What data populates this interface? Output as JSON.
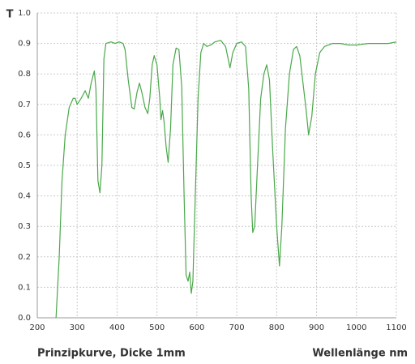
{
  "chart_data": {
    "type": "line",
    "ylabel": "T",
    "caption": "Prinzipkurve, Dicke 1mm",
    "xlabel": "Wellenlänge nm",
    "color": "#4aa84a",
    "grid": true,
    "xlim": [
      200,
      1100
    ],
    "xticks": [
      200,
      300,
      400,
      500,
      600,
      700,
      800,
      900,
      1000,
      1100
    ],
    "ylim": [
      0,
      1
    ],
    "yticks": [
      {
        "value": 0,
        "label": "0.0"
      },
      0.1,
      0.2,
      0.3,
      0.4,
      0.5,
      0.6,
      0.7,
      0.8,
      0.9,
      {
        "value": 1,
        "label": "1.0"
      }
    ],
    "x": [
      247,
      255,
      262,
      270,
      280,
      290,
      295,
      300,
      310,
      320,
      328,
      335,
      343,
      347,
      352,
      357,
      362,
      367,
      372,
      385,
      395,
      405,
      415,
      420,
      428,
      437,
      443,
      450,
      456,
      462,
      470,
      477,
      482,
      488,
      493,
      500,
      507,
      510,
      514,
      518,
      523,
      528,
      534,
      540,
      548,
      555,
      562,
      568,
      573,
      578,
      582,
      586,
      590,
      596,
      603,
      610,
      617,
      625,
      635,
      645,
      660,
      672,
      683,
      690,
      700,
      712,
      722,
      730,
      736,
      740,
      745,
      752,
      760,
      768,
      775,
      782,
      790,
      800,
      807,
      813,
      822,
      832,
      842,
      850,
      858,
      866,
      874,
      880,
      888,
      897,
      908,
      920,
      940,
      960,
      980,
      1000,
      1030,
      1060,
      1080,
      1100
    ],
    "values": [
      0,
      0.2,
      0.45,
      0.6,
      0.69,
      0.72,
      0.72,
      0.7,
      0.72,
      0.745,
      0.72,
      0.77,
      0.81,
      0.75,
      0.45,
      0.41,
      0.5,
      0.85,
      0.9,
      0.905,
      0.9,
      0.905,
      0.9,
      0.88,
      0.78,
      0.69,
      0.685,
      0.74,
      0.77,
      0.74,
      0.69,
      0.67,
      0.72,
      0.83,
      0.86,
      0.83,
      0.72,
      0.65,
      0.68,
      0.64,
      0.56,
      0.51,
      0.62,
      0.83,
      0.885,
      0.88,
      0.76,
      0.4,
      0.14,
      0.12,
      0.15,
      0.08,
      0.12,
      0.4,
      0.72,
      0.87,
      0.9,
      0.89,
      0.895,
      0.905,
      0.91,
      0.89,
      0.82,
      0.87,
      0.9,
      0.905,
      0.89,
      0.75,
      0.4,
      0.28,
      0.3,
      0.5,
      0.72,
      0.8,
      0.83,
      0.78,
      0.55,
      0.3,
      0.17,
      0.3,
      0.62,
      0.8,
      0.88,
      0.89,
      0.86,
      0.77,
      0.68,
      0.6,
      0.66,
      0.8,
      0.87,
      0.89,
      0.9,
      0.9,
      0.895,
      0.895,
      0.9,
      0.9,
      0.9,
      0.905
    ]
  }
}
